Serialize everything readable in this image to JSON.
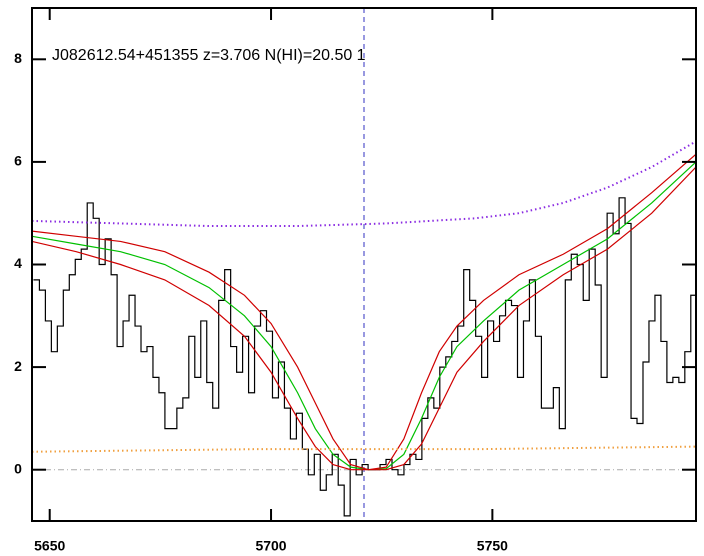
{
  "chart_data": {
    "type": "line",
    "title": "J082612.54+451355 z=3.706 N(HI)=20.50 1",
    "xlim": [
      5646,
      5796
    ],
    "ylim": [
      -1,
      9
    ],
    "xticks": [
      5650,
      5700,
      5750
    ],
    "yticks": [
      0,
      2,
      4,
      6,
      8
    ],
    "vline": 5721,
    "vline_color": "#3030c0",
    "hline": 0,
    "hline_color": "#aaaaaa",
    "x": [
      5647,
      5648.35,
      5649.7,
      5651.05,
      5652.4,
      5653.75,
      5655.1,
      5656.45,
      5657.8,
      5659.15,
      5660.5,
      5661.85,
      5663.2,
      5664.55,
      5665.9,
      5667.25,
      5668.6,
      5669.95,
      5671.3,
      5672.65,
      5674,
      5675.35,
      5676.7,
      5678.05,
      5679.4,
      5680.75,
      5682.1,
      5683.45,
      5684.8,
      5686.15,
      5687.5,
      5688.85,
      5690.2,
      5691.55,
      5692.9,
      5694.25,
      5695.6,
      5696.95,
      5698.3,
      5699.65,
      5701,
      5702.35,
      5703.7,
      5705.05,
      5706.4,
      5707.75,
      5709.1,
      5710.45,
      5711.8,
      5713.15,
      5714.5,
      5715.85,
      5717.2,
      5718.55,
      5719.9,
      5721.25,
      5722.6,
      5723.95,
      5725.3,
      5726.65,
      5728,
      5729.35,
      5730.7,
      5732.05,
      5733.4,
      5734.75,
      5736.1,
      5737.45,
      5738.8,
      5740.15,
      5741.5,
      5742.85,
      5744.2,
      5745.55,
      5746.9,
      5748.25,
      5749.6,
      5750.95,
      5752.3,
      5753.65,
      5755,
      5756.35,
      5757.7,
      5759.05,
      5760.4,
      5761.75,
      5763.1,
      5764.45,
      5765.8,
      5767.15,
      5768.5,
      5769.85,
      5771.2,
      5772.55,
      5773.9,
      5775.25,
      5776.6,
      5777.95,
      5779.3,
      5780.65,
      5782,
      5783.35,
      5784.7,
      5786.05,
      5787.4,
      5788.75,
      5790.1,
      5791.45,
      5792.8,
      5794.15,
      5795.5
    ],
    "series": [
      {
        "color": "#000000",
        "step": true,
        "values": [
          3.7,
          3.5,
          2.9,
          2.3,
          2.8,
          3.5,
          3.8,
          4.1,
          4.3,
          5.2,
          4.9,
          4.0,
          4.5,
          3.8,
          2.4,
          2.9,
          3.4,
          2.8,
          2.3,
          2.4,
          1.8,
          1.5,
          0.8,
          0.8,
          1.2,
          1.4,
          2.6,
          1.8,
          2.9,
          1.7,
          1.2,
          3.3,
          3.9,
          2.4,
          1.9,
          2.6,
          1.5,
          2.8,
          3.1,
          2.7,
          1.4,
          2.1,
          1.2,
          0.6,
          1.1,
          0.4,
          -0.1,
          0.3,
          -0.4,
          -0.1,
          0.3,
          -0.3,
          -0.9,
          0.2,
          -0.1,
          0.1,
          0.0,
          0.0,
          0.1,
          0.2,
          0.0,
          -0.1,
          0.1,
          0.3,
          0.2,
          1.0,
          1.4,
          1.2,
          2.0,
          2.2,
          2.5,
          2.8,
          3.9,
          3.3,
          2.6,
          1.8,
          2.9,
          2.5,
          3.0,
          3.3,
          3.2,
          1.8,
          2.9,
          3.7,
          2.6,
          1.2,
          1.2,
          1.6,
          0.8,
          3.7,
          4.2,
          4.0,
          3.3,
          4.3,
          3.6,
          1.8,
          5.0,
          4.6,
          5.3,
          4.8,
          1.0,
          0.9,
          2.1,
          2.9,
          3.4,
          2.5,
          1.7,
          1.8,
          1.7,
          2.3,
          3.4
        ]
      },
      {
        "color": "#00c000",
        "x": [
          5646,
          5656,
          5666,
          5676,
          5686,
          5694,
          5700,
          5706,
          5710,
          5714,
          5718,
          5722,
          5726,
          5730,
          5734,
          5738,
          5742,
          5748,
          5756,
          5766,
          5776,
          5786,
          5796
        ],
        "values": [
          4.55,
          4.4,
          4.25,
          4.0,
          3.55,
          3.0,
          2.4,
          1.5,
          0.8,
          0.3,
          0.05,
          0.0,
          0.02,
          0.3,
          1.0,
          1.8,
          2.4,
          2.9,
          3.5,
          4.0,
          4.5,
          5.2,
          6.0
        ]
      },
      {
        "color": "#d00000",
        "x": [
          5646,
          5656,
          5666,
          5676,
          5686,
          5694,
          5700,
          5706,
          5710,
          5714,
          5718,
          5722,
          5726,
          5730,
          5734,
          5738,
          5742,
          5748,
          5756,
          5766,
          5776,
          5786,
          5796
        ],
        "values": [
          4.65,
          4.55,
          4.45,
          4.25,
          3.85,
          3.4,
          2.85,
          2.0,
          1.3,
          0.6,
          0.1,
          0.0,
          0.05,
          0.6,
          1.5,
          2.3,
          2.8,
          3.3,
          3.8,
          4.2,
          4.7,
          5.4,
          6.15
        ]
      },
      {
        "color": "#d00000",
        "x": [
          5646,
          5656,
          5666,
          5676,
          5686,
          5694,
          5700,
          5706,
          5710,
          5714,
          5718,
          5722,
          5726,
          5730,
          5734,
          5738,
          5742,
          5748,
          5756,
          5766,
          5776,
          5786,
          5796
        ],
        "values": [
          4.45,
          4.25,
          4.0,
          3.7,
          3.2,
          2.6,
          1.9,
          1.0,
          0.45,
          0.1,
          0.0,
          0.0,
          0.0,
          0.1,
          0.5,
          1.2,
          1.9,
          2.5,
          3.2,
          3.8,
          4.3,
          5.0,
          5.9
        ]
      },
      {
        "color": "#8a2be2",
        "dotted": true,
        "x": [
          5646,
          5666,
          5686,
          5706,
          5726,
          5746,
          5756,
          5766,
          5776,
          5786,
          5796
        ],
        "values": [
          4.85,
          4.8,
          4.75,
          4.75,
          4.8,
          4.9,
          5.0,
          5.2,
          5.5,
          5.9,
          6.4
        ]
      },
      {
        "color": "#f0a040",
        "dotted": true,
        "x": [
          5646,
          5696,
          5746,
          5796
        ],
        "values": [
          0.35,
          0.4,
          0.4,
          0.45
        ]
      }
    ]
  }
}
